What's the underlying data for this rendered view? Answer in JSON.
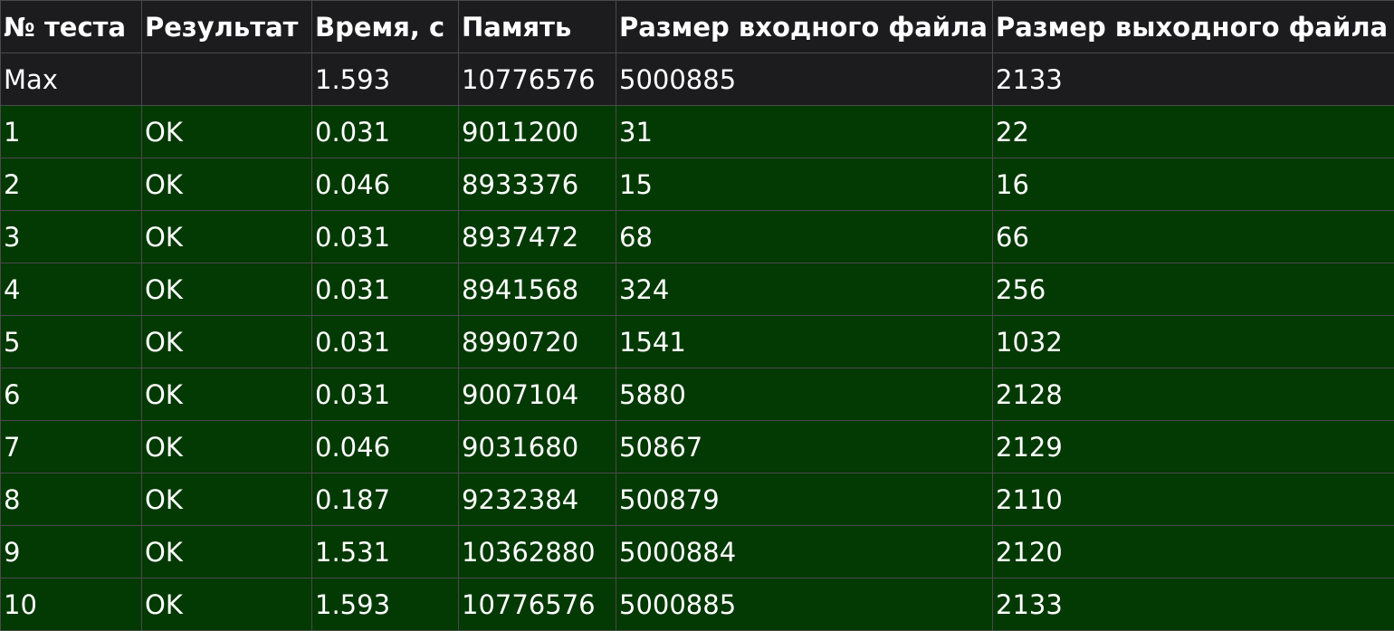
{
  "table": {
    "headers": [
      "№ теста",
      "Результат",
      "Время, с",
      "Память",
      "Размер входного файла",
      "Размер выходного файла"
    ],
    "max_row": [
      "Max",
      "",
      "1.593",
      "10776576",
      "5000885",
      "2133"
    ],
    "rows": [
      [
        "1",
        "OK",
        "0.031",
        "9011200",
        "31",
        "22"
      ],
      [
        "2",
        "OK",
        "0.046",
        "8933376",
        "15",
        "16"
      ],
      [
        "3",
        "OK",
        "0.031",
        "8937472",
        "68",
        "66"
      ],
      [
        "4",
        "OK",
        "0.031",
        "8941568",
        "324",
        "256"
      ],
      [
        "5",
        "OK",
        "0.031",
        "8990720",
        "1541",
        "1032"
      ],
      [
        "6",
        "OK",
        "0.031",
        "9007104",
        "5880",
        "2128"
      ],
      [
        "7",
        "OK",
        "0.046",
        "9031680",
        "50867",
        "2129"
      ],
      [
        "8",
        "OK",
        "0.187",
        "9232384",
        "500879",
        "2110"
      ],
      [
        "9",
        "OK",
        "1.531",
        "10362880",
        "5000884",
        "2120"
      ],
      [
        "10",
        "OK",
        "1.593",
        "10776576",
        "5000885",
        "2133"
      ]
    ]
  },
  "colors": {
    "header_bg": "#1c1c1e",
    "ok_row_bg": "#033903",
    "border": "#4a4a4a",
    "text": "#ffffff"
  }
}
